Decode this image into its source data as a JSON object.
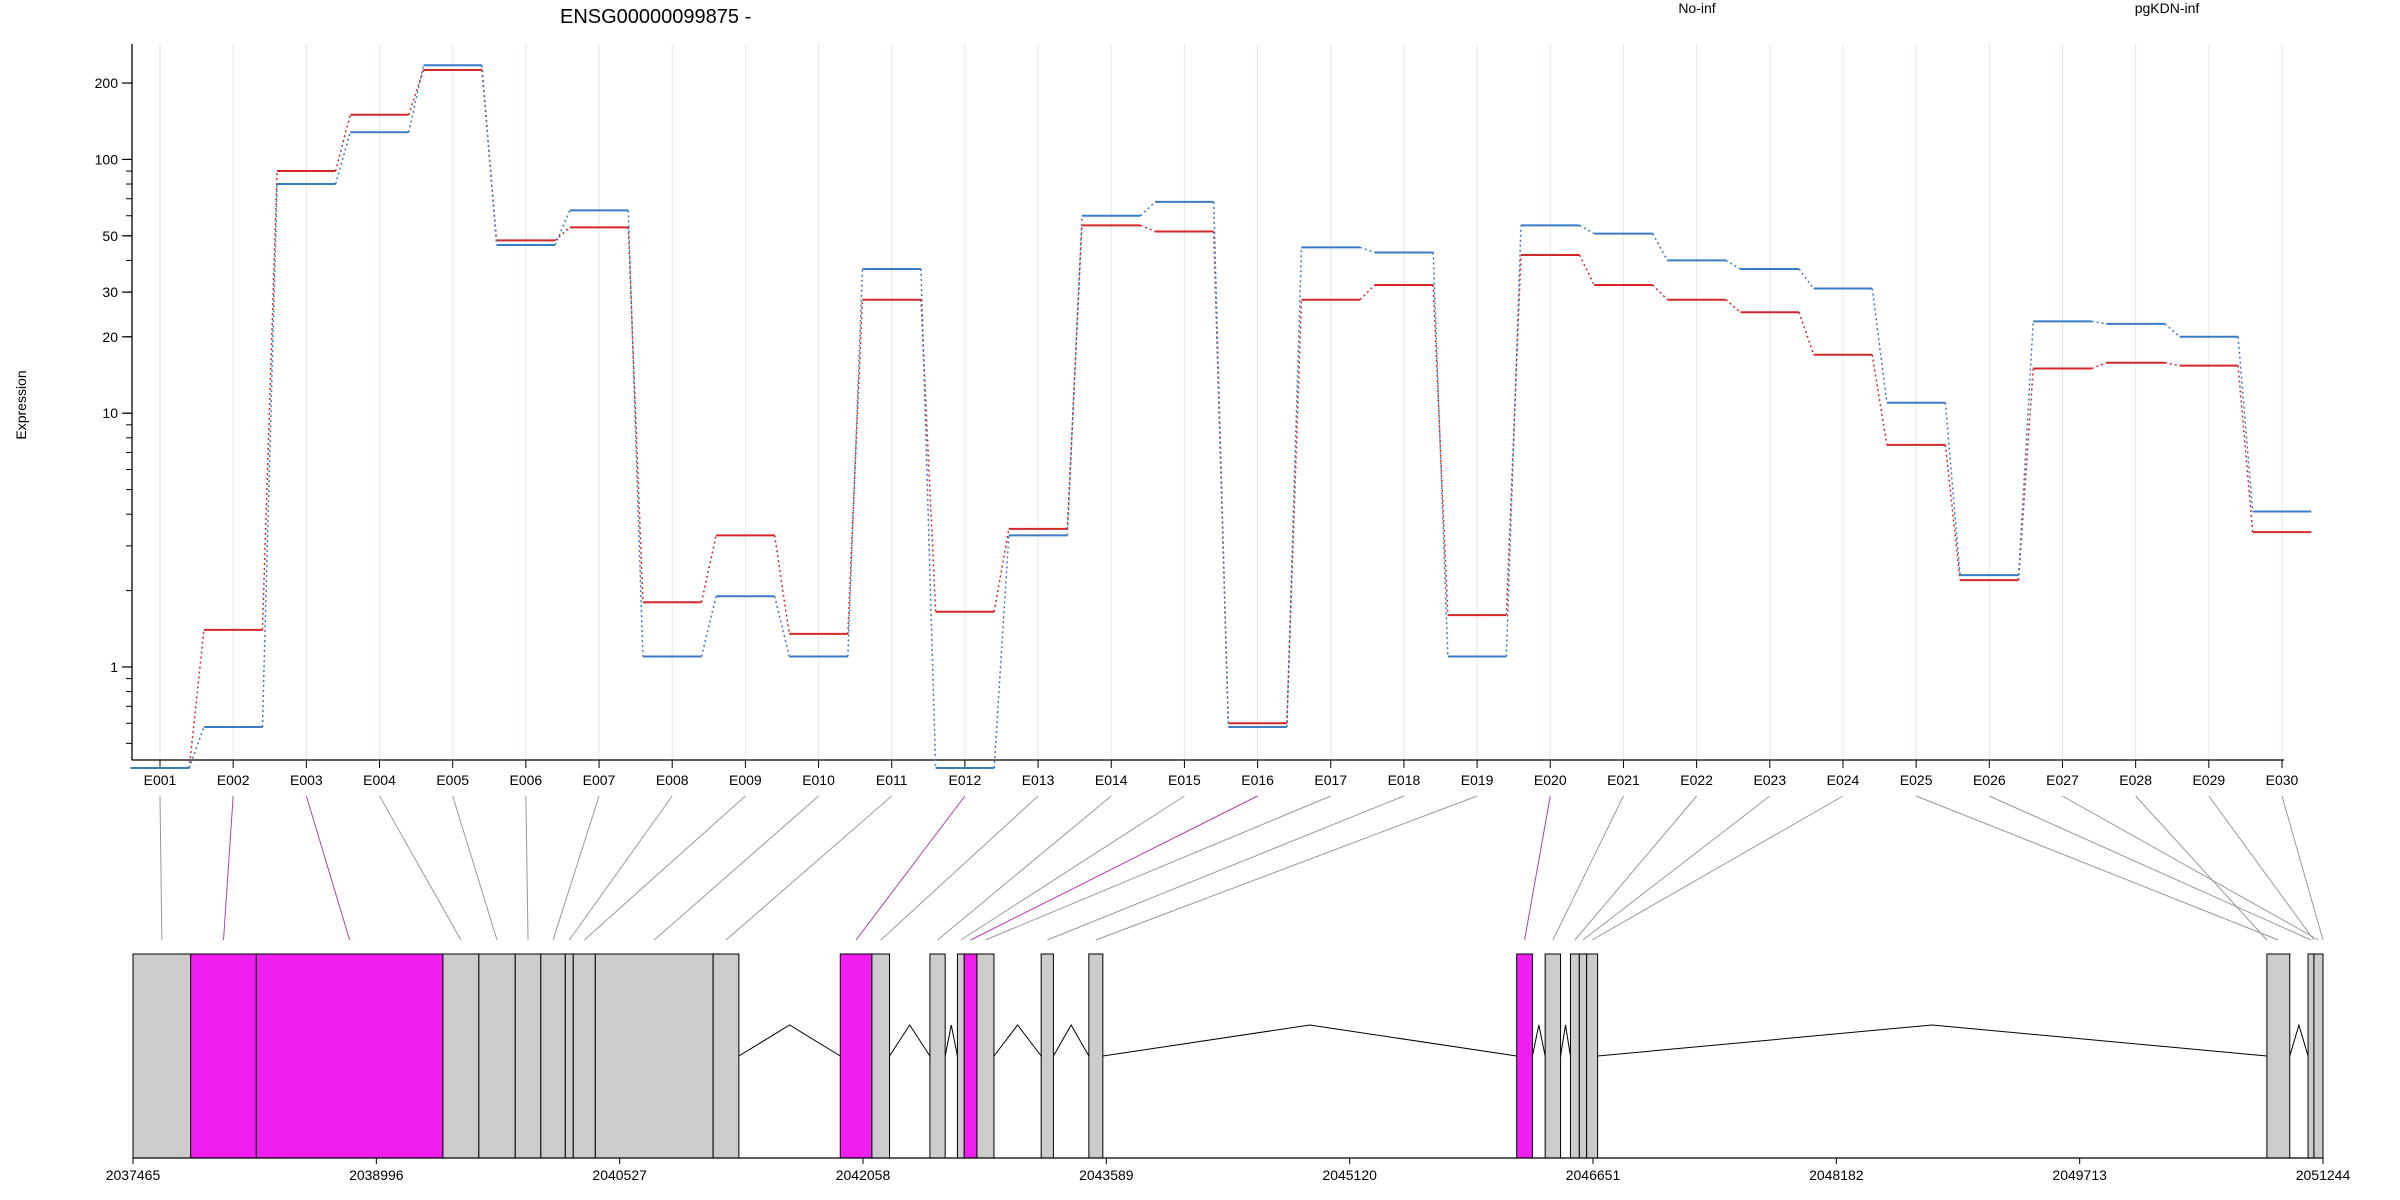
{
  "title": "ENSG00000099875 -",
  "chart_data": {
    "type": "line",
    "ylabel": "Expression",
    "y_scale": "log",
    "ylim": [
      0.43,
      285
    ],
    "y_ticks": [
      1,
      10,
      20,
      30,
      50,
      100,
      200
    ],
    "y_tick_labels": [
      "1",
      "10",
      "20",
      "30",
      "50",
      "100",
      "200"
    ],
    "categories": [
      "E001",
      "E002",
      "E003",
      "E004",
      "E005",
      "E006",
      "E007",
      "E008",
      "E009",
      "E010",
      "E011",
      "E012",
      "E013",
      "E014",
      "E015",
      "E016",
      "E017",
      "E018",
      "E019",
      "E020",
      "E021",
      "E022",
      "E023",
      "E024",
      "E025",
      "E026",
      "E027",
      "E028",
      "E029",
      "E030"
    ],
    "legend_position": "top-right",
    "grid": true,
    "series": [
      {
        "name": "No-inf",
        "color": "#d62728",
        "values": [
          0.4,
          1.4,
          90,
          150,
          225,
          48,
          54,
          1.8,
          3.3,
          1.35,
          28,
          1.65,
          3.5,
          55,
          52,
          0.6,
          28,
          32,
          1.6,
          42,
          32,
          28,
          25,
          17,
          7.5,
          2.2,
          15,
          15.8,
          15.4,
          3.4
        ]
      },
      {
        "name": "pgKDN-inf",
        "color": "#3a7bc8",
        "values": [
          0.4,
          0.58,
          80,
          128,
          235,
          46,
          63,
          1.1,
          1.9,
          1.1,
          37,
          0.4,
          3.3,
          60,
          68,
          0.58,
          45,
          43,
          1.1,
          55,
          51,
          40,
          37,
          31,
          11,
          2.3,
          23,
          22.5,
          20,
          4.1
        ]
      }
    ]
  },
  "gene_model": {
    "coord_labels": [
      "2037465",
      "2038996",
      "2040527",
      "2042058",
      "2043589",
      "2045120",
      "2046651",
      "2048182",
      "2049713",
      "2051244"
    ],
    "coord_min": 2037465,
    "coord_max": 2051244,
    "fill_normal": "#cccccc",
    "fill_highlight": "#f01ff0",
    "line_normal": "#999999",
    "line_highlight": "#b040b0",
    "highlighted_exons": [
      "E002",
      "E003",
      "E012",
      "E016",
      "E020"
    ],
    "exon_spans": [
      [
        "E001",
        2037465,
        2037828
      ],
      [
        "E002",
        2037828,
        2038241
      ],
      [
        "E003",
        2038241,
        2039415
      ],
      [
        "E004",
        2039415,
        2039641
      ],
      [
        "E005",
        2039641,
        2039870
      ],
      [
        "E006",
        2039870,
        2040031
      ],
      [
        "E007",
        2040031,
        2040185
      ],
      [
        "E008",
        2040185,
        2040235
      ],
      [
        "E009",
        2040235,
        2040374
      ],
      [
        "E010",
        2040374,
        2041115
      ],
      [
        "E011",
        2041115,
        2041277
      ],
      [
        "E012",
        2041915,
        2042114
      ],
      [
        "E013",
        2042114,
        2042225
      ],
      [
        "E014",
        2042479,
        2042575
      ],
      [
        "E015",
        2042652,
        2042695
      ],
      [
        "E016",
        2042695,
        2042775
      ],
      [
        "E017",
        2042775,
        2042882
      ],
      [
        "E018",
        2043179,
        2043256
      ],
      [
        "E019",
        2043479,
        2043567
      ],
      [
        "E020",
        2046171,
        2046270
      ],
      [
        "E021",
        2046350,
        2046447
      ],
      [
        "E022",
        2046509,
        2046565
      ],
      [
        "E023",
        2046565,
        2046611
      ],
      [
        "E024",
        2046611,
        2046680
      ],
      [
        "E025",
        2050891,
        2051035
      ],
      [
        "E026",
        2051150,
        2051187
      ],
      [
        "E027",
        2051187,
        2051244
      ],
      [
        "E028",
        2050891,
        2050891
      ],
      [
        "E029",
        2051187,
        2051187
      ],
      [
        "E030",
        2051244,
        2051244
      ]
    ]
  }
}
